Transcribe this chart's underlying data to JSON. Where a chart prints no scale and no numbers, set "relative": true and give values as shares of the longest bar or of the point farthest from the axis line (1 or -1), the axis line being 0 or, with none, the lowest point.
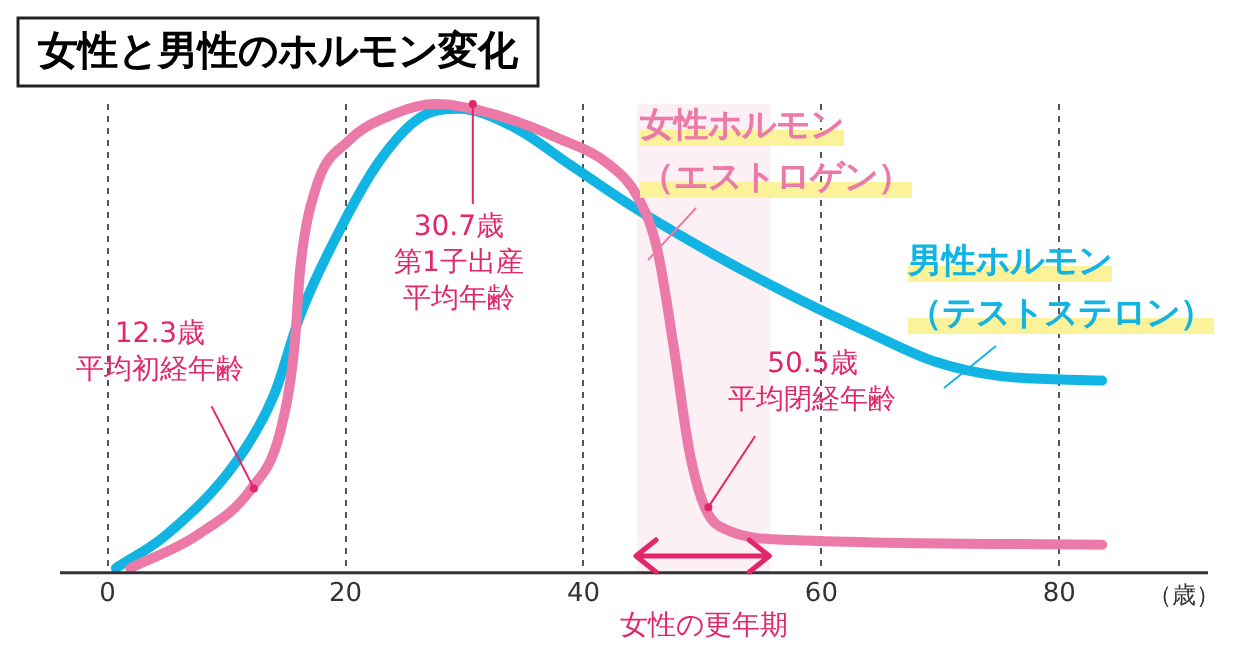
{
  "chart_data": {
    "type": "line",
    "title": "女性と男性のホルモン変化",
    "xlabel": "（歳）",
    "relative": true,
    "xlim": [
      -4,
      92.5
    ],
    "xticks": [
      0,
      20,
      40,
      60,
      80
    ],
    "grid": "x",
    "legend": false,
    "marker": "none",
    "line_style": "solid",
    "series": [
      {
        "name": "女性ホルモン（エストロゲン）",
        "color": "#ec7aa8",
        "x": [
          1.9,
          7.5,
          12.1,
          14.5,
          15.7,
          16.2,
          17.5,
          20.2,
          24.2,
          27.6,
          32.2,
          37.6,
          42.2,
          44.6,
          46.2,
          47.6,
          48.9,
          50.2,
          52.2,
          57.6,
          83.6
        ],
        "values": [
          0.01,
          0.08,
          0.18,
          0.3,
          0.48,
          0.65,
          0.82,
          0.92,
          0.98,
          1.0,
          0.98,
          0.93,
          0.87,
          0.8,
          0.69,
          0.48,
          0.26,
          0.14,
          0.09,
          0.07,
          0.06
        ]
      },
      {
        "name": "男性ホルモン（テストステロン）",
        "color": "#12b4e4",
        "x": [
          0.7,
          4.9,
          10.9,
          14,
          16.2,
          19.9,
          22.9,
          26.2,
          29.5,
          34.2,
          38.9,
          44.2,
          50.9,
          57.6,
          64.2,
          69.6,
          74.9,
          83.6
        ],
        "values": [
          0.01,
          0.08,
          0.24,
          0.38,
          0.55,
          0.75,
          0.88,
          0.97,
          0.99,
          0.95,
          0.87,
          0.78,
          0.68,
          0.59,
          0.51,
          0.45,
          0.42,
          0.41
        ]
      }
    ],
    "annotations": [
      {
        "text": "12.3歳平均初経年齢",
        "x": 12.3,
        "y": 0.18
      },
      {
        "text": "30.7歳第1子出産平均年齢",
        "x": 30.7,
        "y": 1.0
      },
      {
        "text": "50.5歳平均閉経年齢",
        "x": 50.5,
        "y": 0.14
      }
    ],
    "bands": [
      {
        "axis": "x",
        "from": 44.5,
        "to": 55.7,
        "label": "女性の更年期",
        "color": "#e2266a"
      }
    ]
  }
}
